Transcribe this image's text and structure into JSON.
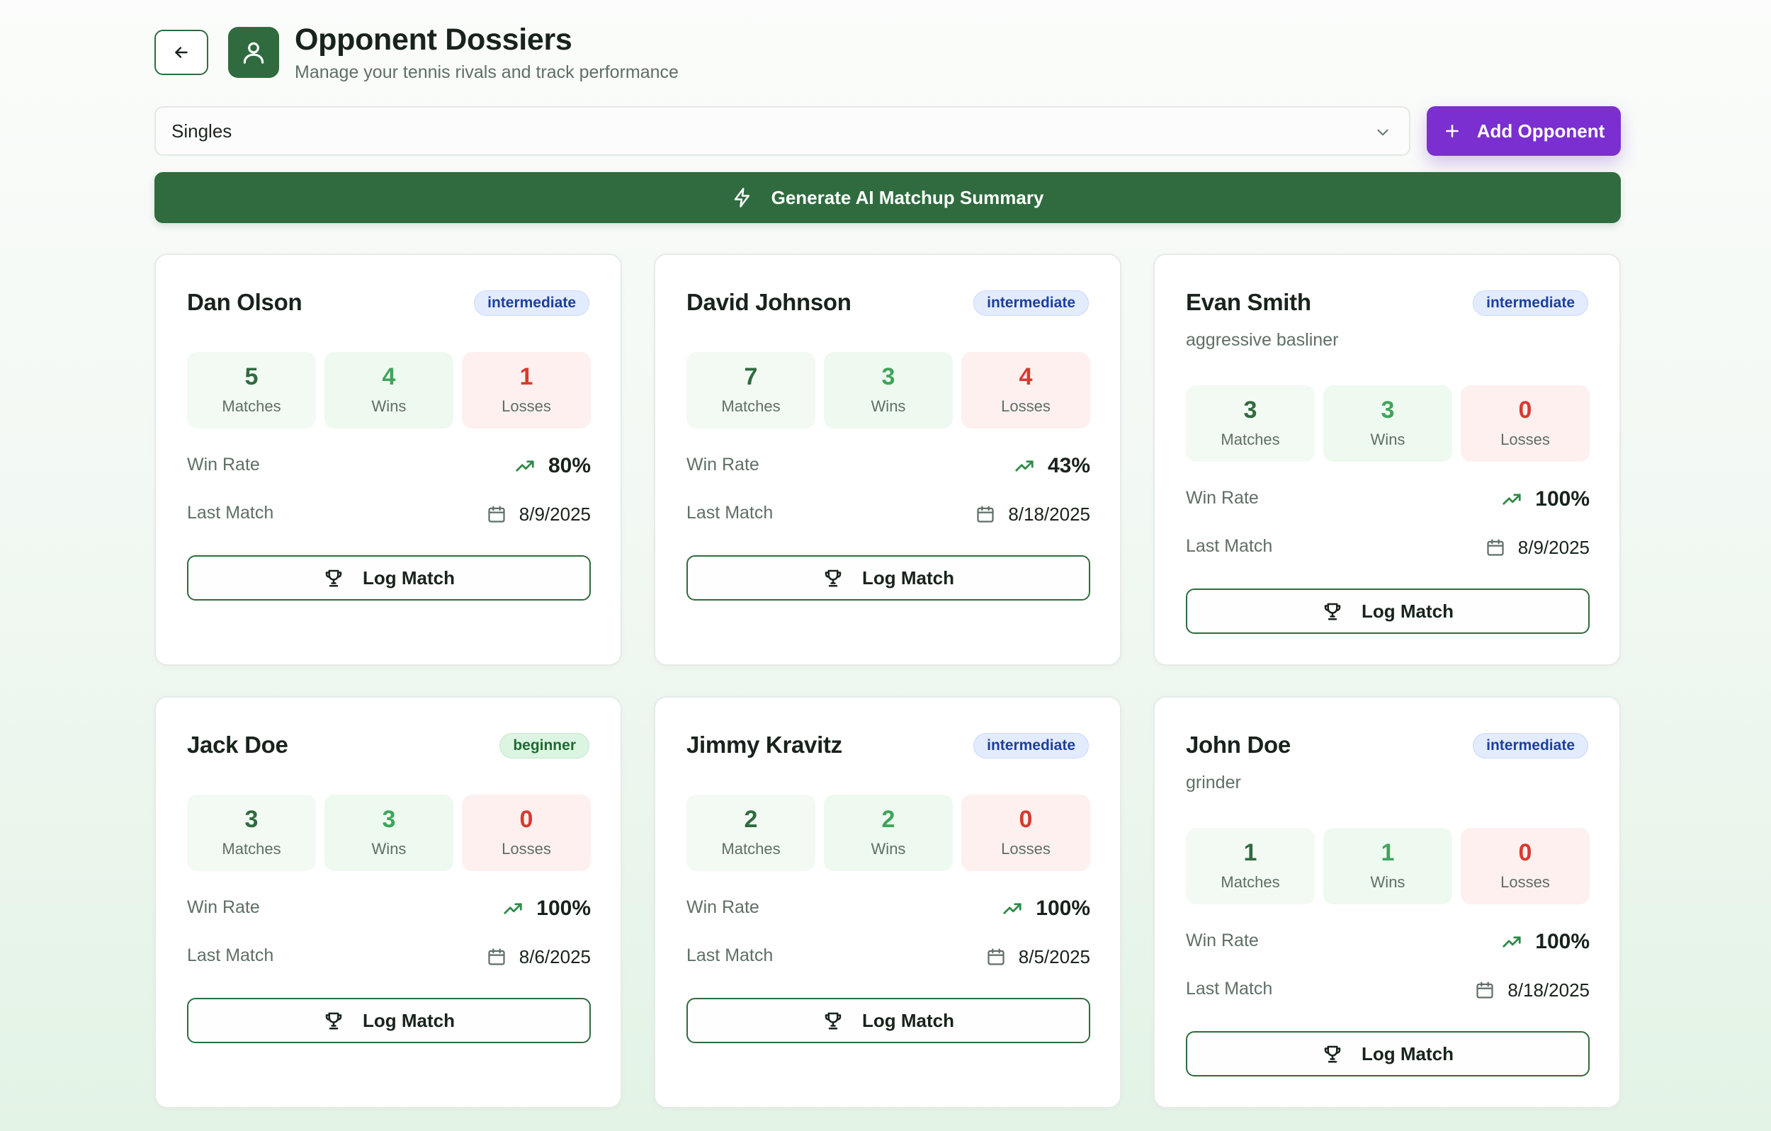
{
  "header": {
    "title": "Opponent Dossiers",
    "subtitle": "Manage your tennis rivals and track performance"
  },
  "filter": {
    "selected": "Singles"
  },
  "actions": {
    "add_label": "Add Opponent",
    "ai_label": "Generate AI Matchup Summary"
  },
  "labels": {
    "matches": "Matches",
    "wins": "Wins",
    "losses": "Losses",
    "win_rate": "Win Rate",
    "last_match": "Last Match",
    "log_match": "Log Match"
  },
  "opponents": [
    {
      "name": "Dan Olson",
      "level": "intermediate",
      "note": "",
      "matches": "5",
      "wins": "4",
      "losses": "1",
      "win_rate": "80%",
      "last_match": "8/9/2025"
    },
    {
      "name": "David Johnson",
      "level": "intermediate",
      "note": "",
      "matches": "7",
      "wins": "3",
      "losses": "4",
      "win_rate": "43%",
      "last_match": "8/18/2025"
    },
    {
      "name": "Evan Smith",
      "level": "intermediate",
      "note": "aggressive basliner",
      "matches": "3",
      "wins": "3",
      "losses": "0",
      "win_rate": "100%",
      "last_match": "8/9/2025"
    },
    {
      "name": "Jack Doe",
      "level": "beginner",
      "note": "",
      "matches": "3",
      "wins": "3",
      "losses": "0",
      "win_rate": "100%",
      "last_match": "8/6/2025"
    },
    {
      "name": "Jimmy Kravitz",
      "level": "intermediate",
      "note": "",
      "matches": "2",
      "wins": "2",
      "losses": "0",
      "win_rate": "100%",
      "last_match": "8/5/2025"
    },
    {
      "name": "John Doe",
      "level": "intermediate",
      "note": "grinder",
      "matches": "1",
      "wins": "1",
      "losses": "0",
      "win_rate": "100%",
      "last_match": "8/18/2025"
    }
  ],
  "colors": {
    "primary_green": "#2f6b3e",
    "accent_purple": "#7b2fd0",
    "win_green": "#3ea55a",
    "loss_red": "#d9392f",
    "badge_intermediate": "#e3ecff",
    "badge_beginner": "#dcf5e2"
  },
  "icons": {
    "back": "arrow-left-icon",
    "app": "user-icon",
    "dropdown": "chevron-down-icon",
    "add": "plus-icon",
    "ai": "lightning-icon",
    "trend": "trending-up-icon",
    "calendar": "calendar-icon",
    "log": "trophy-icon"
  }
}
